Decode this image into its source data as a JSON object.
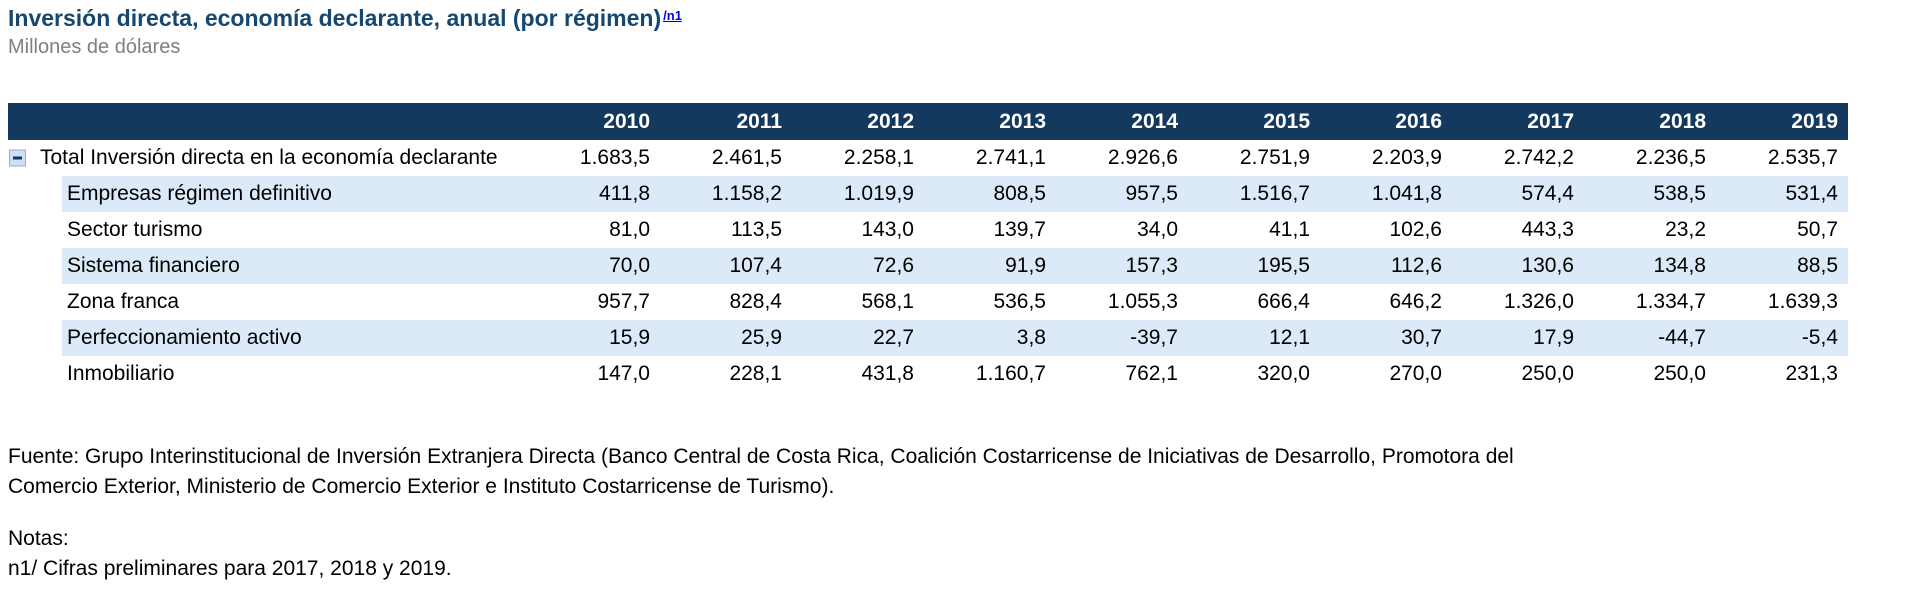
{
  "page": {
    "title": "Inversión directa, economía declarante, anual (por régimen)",
    "title_note": "/n1",
    "subtitle": "Millones de dólares"
  },
  "table": {
    "years": [
      "2010",
      "2011",
      "2012",
      "2013",
      "2014",
      "2015",
      "2016",
      "2017",
      "2018",
      "2019"
    ],
    "rows": [
      {
        "label": "Total Inversión directa en la economía declarante",
        "values": [
          "1.683,5",
          "2.461,5",
          "2.258,1",
          "2.741,1",
          "2.926,6",
          "2.751,9",
          "2.203,9",
          "2.742,2",
          "2.236,5",
          "2.535,7"
        ]
      },
      {
        "label": "Empresas régimen definitivo",
        "values": [
          "411,8",
          "1.158,2",
          "1.019,9",
          "808,5",
          "957,5",
          "1.516,7",
          "1.041,8",
          "574,4",
          "538,5",
          "531,4"
        ]
      },
      {
        "label": "Sector turismo",
        "values": [
          "81,0",
          "113,5",
          "143,0",
          "139,7",
          "34,0",
          "41,1",
          "102,6",
          "443,3",
          "23,2",
          "50,7"
        ]
      },
      {
        "label": "Sistema financiero",
        "values": [
          "70,0",
          "107,4",
          "72,6",
          "91,9",
          "157,3",
          "195,5",
          "112,6",
          "130,6",
          "134,8",
          "88,5"
        ]
      },
      {
        "label": "Zona franca",
        "values": [
          "957,7",
          "828,4",
          "568,1",
          "536,5",
          "1.055,3",
          "666,4",
          "646,2",
          "1.326,0",
          "1.334,7",
          "1.639,3"
        ]
      },
      {
        "label": "Perfeccionamiento activo",
        "values": [
          "15,9",
          "25,9",
          "22,7",
          "3,8",
          "-39,7",
          "12,1",
          "30,7",
          "17,9",
          "-44,7",
          "-5,4"
        ]
      },
      {
        "label": "Inmobiliario",
        "values": [
          "147,0",
          "228,1",
          "431,8",
          "1.160,7",
          "762,1",
          "320,0",
          "270,0",
          "250,0",
          "250,0",
          "231,3"
        ]
      }
    ]
  },
  "source": {
    "line1": "Fuente: Grupo Interinstitucional de Inversión Extranjera Directa (Banco Central de Costa Rica, Coalición Costarricense de Iniciativas de Desarrollo, Promotora del",
    "line2": "Comercio Exterior, Ministerio de Comercio Exterior e Instituto Costarricense de Turismo)."
  },
  "notes": {
    "heading": "Notas:",
    "note1": "n1/ Cifras preliminares para 2017, 2018 y 2019."
  },
  "icons": {
    "expander": "collapse-minus-icon"
  },
  "colors": {
    "header_bg": "#14395E",
    "row_alt_bg": "#DCE9F8",
    "title_color": "#16486F",
    "link_color": "#0000EE",
    "subtitle_color": "#7F7F7F",
    "header_text": "#FFFFFF",
    "body_text": "#000000"
  }
}
